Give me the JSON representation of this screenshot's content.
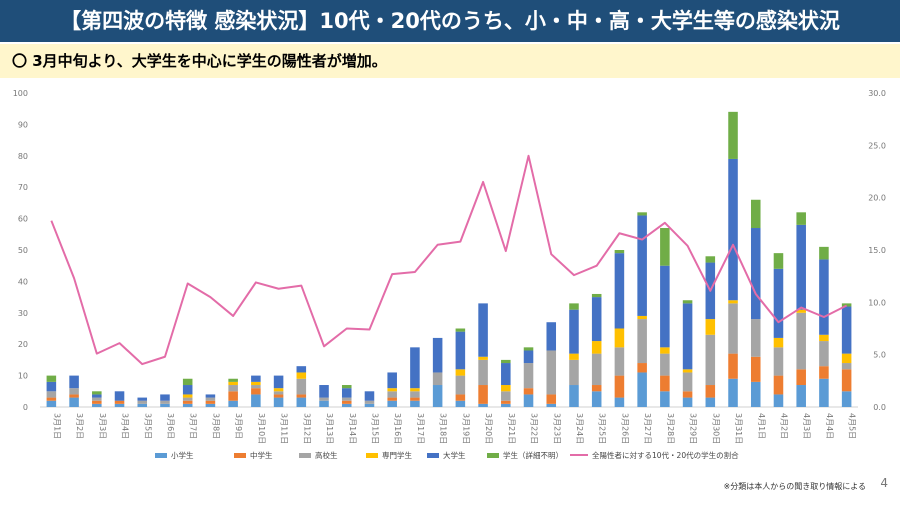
{
  "page": {
    "title": "【第四波の特徴 感染状況】10代・20代のうち、小・中・高・大学生等の感染状況",
    "subtitle": "〇 3月中旬より、大学生を中心に学生の陽性者が増加。",
    "footnote": "※分類は本人からの聞き取り情報による",
    "page_number": "4"
  },
  "chart_data": {
    "type": "bar",
    "stacked": true,
    "categories": [
      "3月1日",
      "3月2日",
      "3月3日",
      "3月4日",
      "3月5日",
      "3月6日",
      "3月7日",
      "3月8日",
      "3月9日",
      "3月10日",
      "3月11日",
      "3月12日",
      "3月13日",
      "3月14日",
      "3月15日",
      "3月16日",
      "3月17日",
      "3月18日",
      "3月19日",
      "3月20日",
      "3月21日",
      "3月22日",
      "3月23日",
      "3月24日",
      "3月25日",
      "3月26日",
      "3月27日",
      "3月28日",
      "3月29日",
      "3月30日",
      "3月31日",
      "4月1日",
      "4月2日",
      "4月3日",
      "4月4日",
      "4月5日"
    ],
    "series": [
      {
        "name": "小学生",
        "color": "#5b9bd5",
        "values": [
          2,
          3,
          1,
          1,
          1,
          1,
          1,
          1,
          2,
          4,
          3,
          3,
          2,
          1,
          1,
          2,
          2,
          7,
          2,
          1,
          1,
          4,
          1,
          7,
          5,
          3,
          11,
          5,
          3,
          3,
          9,
          8,
          4,
          7,
          9,
          5
        ]
      },
      {
        "name": "中学生",
        "color": "#ed7d31",
        "values": [
          1,
          1,
          1,
          1,
          0,
          0,
          1,
          1,
          3,
          2,
          1,
          1,
          0,
          1,
          0,
          1,
          1,
          0,
          2,
          6,
          1,
          2,
          3,
          0,
          2,
          7,
          3,
          5,
          2,
          4,
          8,
          8,
          6,
          5,
          4,
          7
        ]
      },
      {
        "name": "高校生",
        "color": "#a5a5a5",
        "values": [
          2,
          2,
          1,
          0,
          1,
          1,
          1,
          1,
          2,
          1,
          1,
          5,
          1,
          1,
          1,
          2,
          2,
          4,
          6,
          8,
          3,
          8,
          14,
          8,
          10,
          9,
          14,
          7,
          6,
          16,
          16,
          12,
          9,
          18,
          8,
          2
        ]
      },
      {
        "name": "専門学生",
        "color": "#ffc000",
        "values": [
          0,
          0,
          0,
          0,
          0,
          0,
          1,
          0,
          1,
          1,
          1,
          2,
          0,
          0,
          0,
          1,
          1,
          0,
          2,
          1,
          2,
          0,
          0,
          2,
          4,
          6,
          1,
          2,
          1,
          5,
          1,
          0,
          3,
          1,
          2,
          3
        ]
      },
      {
        "name": "大学生",
        "color": "#4472c4",
        "values": [
          3,
          4,
          1,
          3,
          1,
          2,
          3,
          1,
          0,
          2,
          4,
          2,
          4,
          3,
          3,
          5,
          13,
          11,
          12,
          17,
          7,
          4,
          9,
          14,
          14,
          24,
          32,
          26,
          21,
          18,
          45,
          29,
          22,
          27,
          24,
          15
        ]
      },
      {
        "name": "学生（詳細不明）",
        "color": "#70ad47",
        "values": [
          2,
          0,
          1,
          0,
          0,
          0,
          2,
          0,
          1,
          0,
          0,
          0,
          0,
          1,
          0,
          0,
          0,
          0,
          1,
          0,
          1,
          1,
          0,
          2,
          1,
          1,
          1,
          12,
          1,
          2,
          15,
          9,
          5,
          4,
          4,
          1
        ]
      }
    ],
    "line": {
      "name": "全陽性者に対する10代・20代の学生の割合",
      "color": "#e36ca8",
      "axis": "right",
      "values": [
        17.8,
        12.3,
        5.1,
        6.1,
        4.1,
        4.8,
        11.8,
        10.5,
        8.7,
        11.9,
        11.3,
        11.6,
        5.8,
        7.5,
        7.4,
        12.7,
        12.9,
        15.5,
        15.8,
        21.5,
        14.9,
        24.0,
        14.6,
        12.6,
        13.5,
        16.6,
        16.0,
        17.6,
        15.4,
        11.1,
        15.5,
        10.8,
        8.1,
        9.5,
        8.6,
        9.7
      ]
    },
    "y_left": {
      "min": 0,
      "max": 100,
      "ticks": [
        "0",
        "10",
        "20",
        "30",
        "40",
        "50",
        "60",
        "70",
        "80",
        "90",
        "100"
      ]
    },
    "y_right": {
      "min": 0,
      "max": 30,
      "ticks": [
        "0.0",
        "5.0",
        "10.0",
        "15.0",
        "20.0",
        "25.0",
        "30.0"
      ]
    },
    "grid": false,
    "legend": "bottom"
  }
}
